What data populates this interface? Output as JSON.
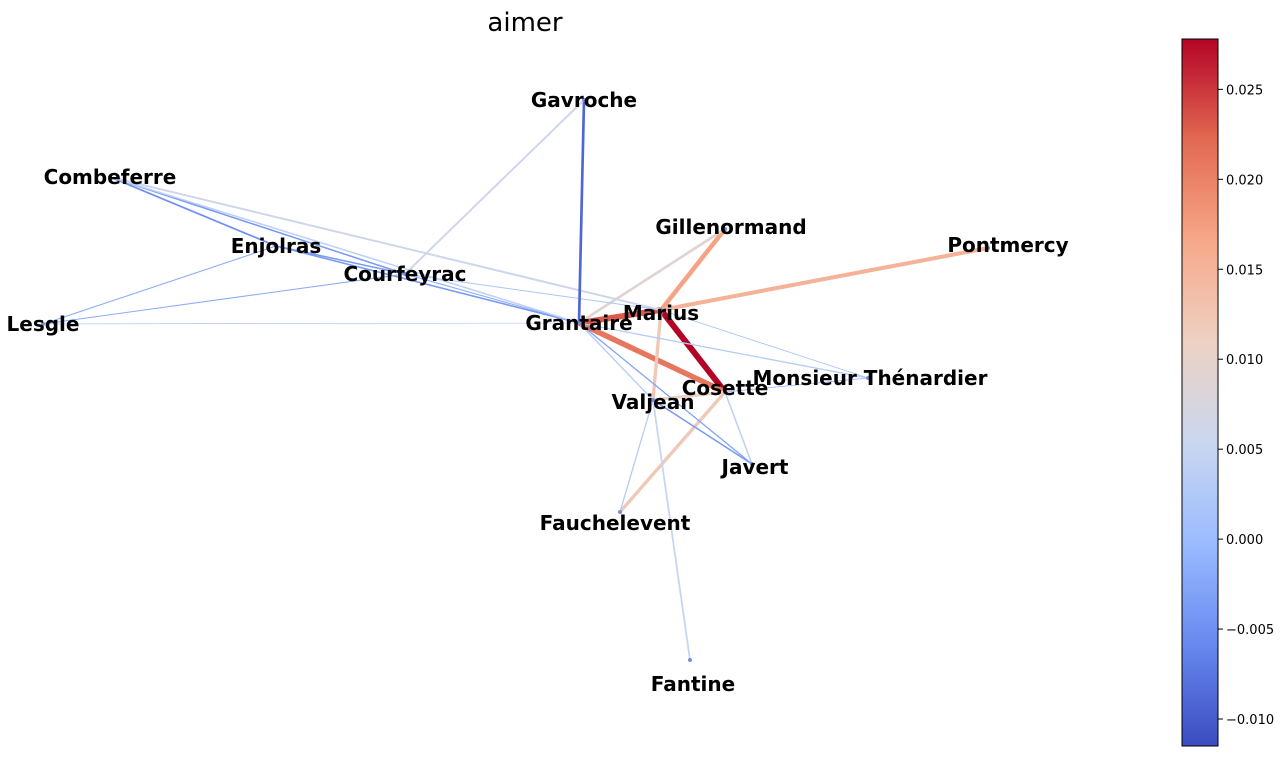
{
  "title": "aimer",
  "colormap": {
    "name": "coolwarm",
    "stops": [
      "#3b4cc0",
      "#6788ee",
      "#9abbff",
      "#c9d7f0",
      "#edd1c2",
      "#f7a889",
      "#e26952",
      "#b40426"
    ],
    "min": -0.0115,
    "max": 0.0278
  },
  "colorbar_ticks": [
    "0.025",
    "0.020",
    "0.015",
    "0.010",
    "0.005",
    "0.000",
    "−0.005",
    "−0.010"
  ],
  "colorbar_tick_values": [
    0.025,
    0.02,
    0.015,
    0.01,
    0.005,
    0.0,
    -0.005,
    -0.01
  ],
  "nodes": [
    {
      "id": "Gavroche",
      "label": "Gavroche"
    },
    {
      "id": "Combeferre",
      "label": "Combeferre"
    },
    {
      "id": "Enjolras",
      "label": "Enjolras"
    },
    {
      "id": "Courfeyrac",
      "label": "Courfeyrac"
    },
    {
      "id": "Lesgle",
      "label": "Lesgle"
    },
    {
      "id": "Grantaire",
      "label": "Grantaire"
    },
    {
      "id": "Marius",
      "label": "Marius"
    },
    {
      "id": "Gillenormand",
      "label": "Gillenormand"
    },
    {
      "id": "Pontmercy",
      "label": "Pontmercy"
    },
    {
      "id": "MonsieurThenardier",
      "label": "Monsieur Thénardier"
    },
    {
      "id": "Cosette",
      "label": "Cosette"
    },
    {
      "id": "Valjean",
      "label": "Valjean"
    },
    {
      "id": "Javert",
      "label": "Javert"
    },
    {
      "id": "Fauchelevent",
      "label": "Fauchelevent"
    },
    {
      "id": "Fantine",
      "label": "Fantine"
    }
  ],
  "edges": [
    {
      "source": "Marius",
      "target": "Cosette",
      "weight": 0.0278
    },
    {
      "source": "Grantaire",
      "target": "Cosette",
      "weight": 0.021
    },
    {
      "source": "Grantaire",
      "target": "Marius",
      "weight": 0.023
    },
    {
      "source": "Marius",
      "target": "Gillenormand",
      "weight": 0.017
    },
    {
      "source": "Marius",
      "target": "Pontmercy",
      "weight": 0.015
    },
    {
      "source": "Marius",
      "target": "Valjean",
      "weight": 0.012
    },
    {
      "source": "Grantaire",
      "target": "Gillenormand",
      "weight": 0.009
    },
    {
      "source": "Cosette",
      "target": "Fauchelevent",
      "weight": 0.012
    },
    {
      "source": "Valjean",
      "target": "Cosette",
      "weight": 0.011
    },
    {
      "source": "Grantaire",
      "target": "Valjean",
      "weight": 0.003
    },
    {
      "source": "Courfeyrac",
      "target": "Marius",
      "weight": 0.002
    },
    {
      "source": "Courfeyrac",
      "target": "Grantaire",
      "weight": -0.002
    },
    {
      "source": "Enjolras",
      "target": "Grantaire",
      "weight": -0.004
    },
    {
      "source": "Combeferre",
      "target": "Enjolras",
      "weight": -0.005
    },
    {
      "source": "Combeferre",
      "target": "Courfeyrac",
      "weight": -0.004
    },
    {
      "source": "Combeferre",
      "target": "Grantaire",
      "weight": 0.004
    },
    {
      "source": "Combeferre",
      "target": "Marius",
      "weight": 0.006
    },
    {
      "source": "Cosette",
      "target": "MonsieurThenardier",
      "weight": -0.001
    },
    {
      "source": "Grantaire",
      "target": "MonsieurThenardier",
      "weight": 0.003
    },
    {
      "source": "Marius",
      "target": "MonsieurThenardier",
      "weight": 0.001
    },
    {
      "source": "Valjean",
      "target": "Javert",
      "weight": -0.004
    },
    {
      "source": "Grantaire",
      "target": "Javert",
      "weight": -0.003
    },
    {
      "source": "Cosette",
      "target": "Javert",
      "weight": 0.004
    },
    {
      "source": "Valjean",
      "target": "Fauchelevent",
      "weight": 0.003
    },
    {
      "source": "Valjean",
      "target": "Fantine",
      "weight": 0.005
    },
    {
      "source": "Grantaire",
      "target": "Gavroche",
      "weight": -0.009
    },
    {
      "source": "Courfeyrac",
      "target": "Gavroche",
      "weight": 0.006
    },
    {
      "source": "Lesgle",
      "target": "Enjolras",
      "weight": -0.002
    },
    {
      "source": "Lesgle",
      "target": "Courfeyrac",
      "weight": -0.002
    },
    {
      "source": "Lesgle",
      "target": "Grantaire",
      "weight": 0.0
    },
    {
      "source": "Enjolras",
      "target": "Courfeyrac",
      "weight": -0.004
    }
  ]
}
